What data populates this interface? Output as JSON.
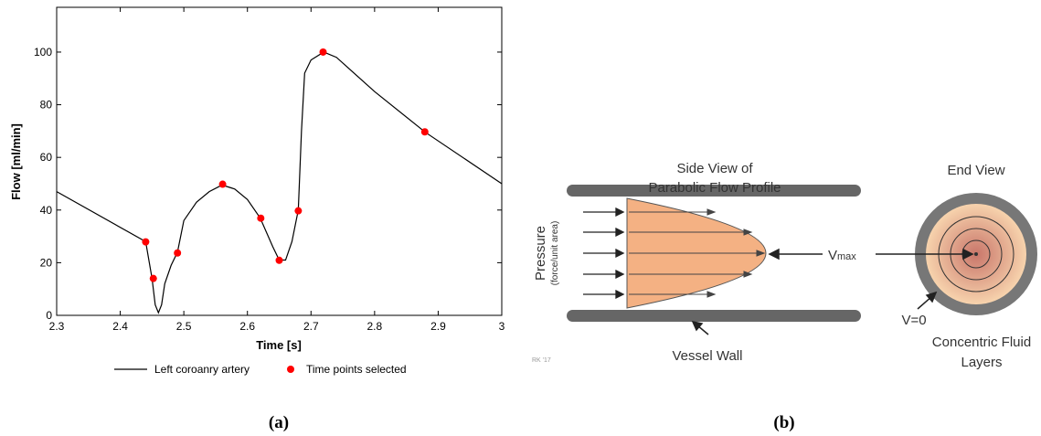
{
  "chart_data": {
    "type": "line",
    "xlabel": "Time [s]",
    "ylabel": "Flow [ml/min]",
    "xlim": [
      2.3,
      3
    ],
    "xticks": [
      2.3,
      2.4,
      2.5,
      2.6,
      2.7,
      2.8,
      2.9,
      3
    ],
    "ylim": [
      0,
      117
    ],
    "yticks": [
      0,
      20,
      40,
      60,
      80,
      100
    ],
    "series": [
      {
        "name": "Left coroanry artery",
        "color": "#000000",
        "marker": "none",
        "x": [
          2.3,
          2.44,
          2.45,
          2.455,
          2.46,
          2.465,
          2.47,
          2.48,
          2.49,
          2.5,
          2.52,
          2.54,
          2.56,
          2.58,
          2.6,
          2.62,
          2.64,
          2.65,
          2.66,
          2.67,
          2.68,
          2.685,
          2.69,
          2.7,
          2.72,
          2.74,
          2.8,
          2.88,
          3
        ],
        "values": [
          47,
          28,
          14,
          4,
          1,
          4,
          12,
          19,
          24,
          36,
          43,
          47,
          49.5,
          48,
          44,
          37,
          26,
          21,
          21,
          28,
          40,
          70,
          92,
          97,
          100,
          98,
          85,
          69.5,
          50
        ]
      },
      {
        "name": "Time points selected",
        "color": "#ff0000",
        "marker": "dot",
        "x": [
          2.44,
          2.452,
          2.49,
          2.561,
          2.621,
          2.65,
          2.68,
          2.719,
          2.879
        ],
        "values": [
          27.9,
          14,
          23.7,
          49.8,
          36.9,
          20.9,
          39.7,
          100,
          69.7
        ]
      }
    ]
  },
  "diagram": {
    "side_title": [
      "Side View of",
      "Parabolic Flow Profile"
    ],
    "end_title": "End View",
    "pressure": [
      "Pressure",
      "(force/unit area)"
    ],
    "vmax": {
      "symbol": "V",
      "subscript": "max"
    },
    "v0": "V=0",
    "wall": "Vessel Wall",
    "layers": [
      "Concentric Fluid",
      "Layers"
    ],
    "credit": "RK '17"
  },
  "captions": [
    "(a)",
    "(b)"
  ]
}
